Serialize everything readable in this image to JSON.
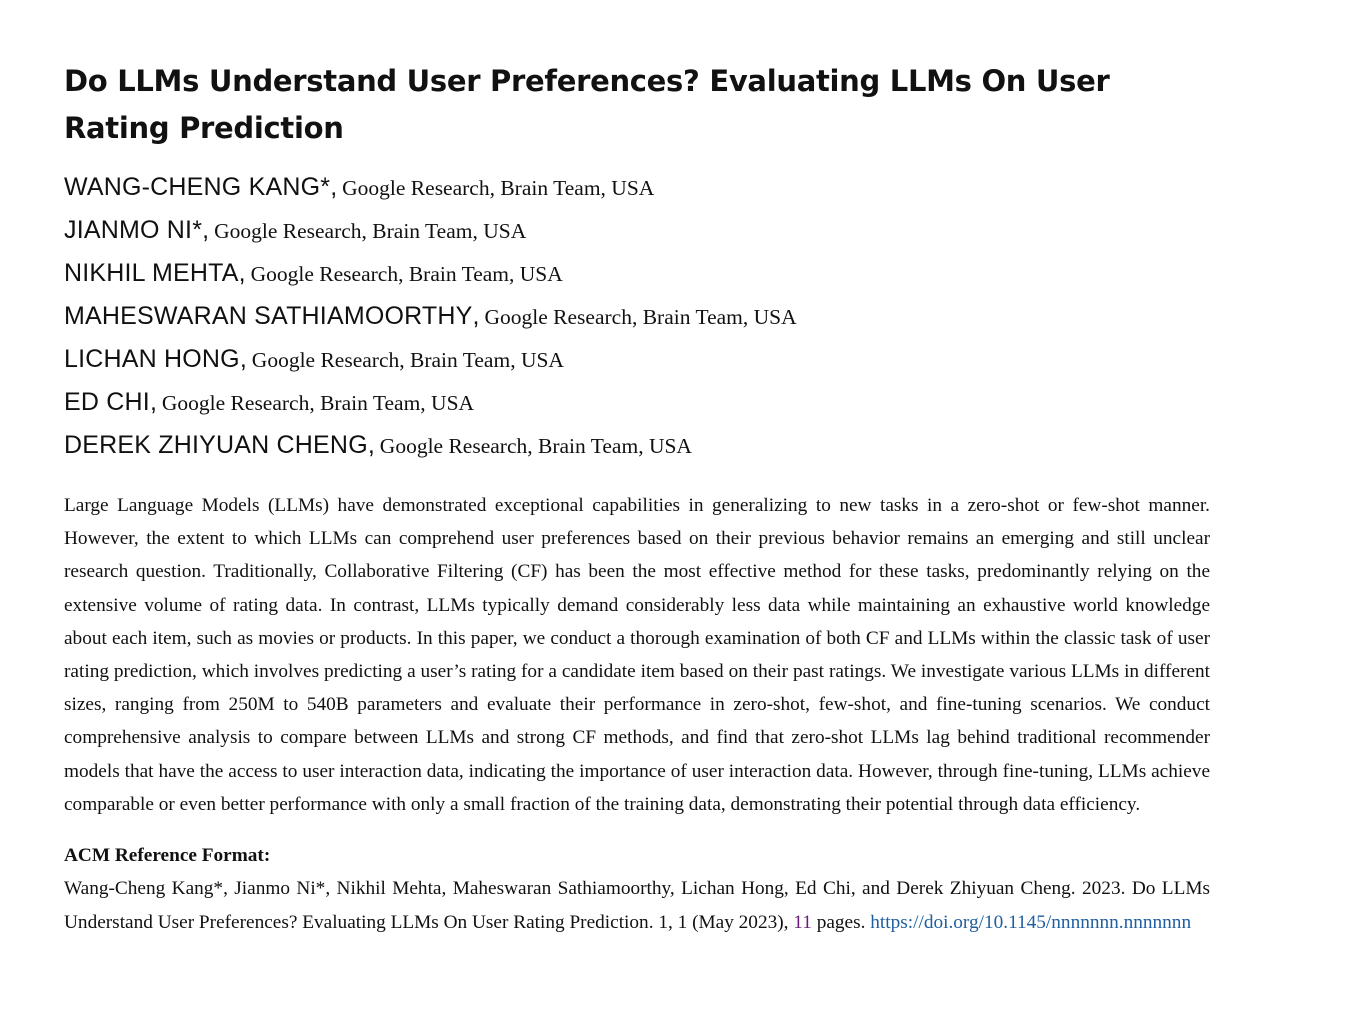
{
  "paper": {
    "title": "Do LLMs Understand User Preferences? Evaluating LLMs On User Rating Prediction",
    "authors": [
      {
        "name": "WANG-CHENG KANG*",
        "affiliation": "Google Research, Brain Team, USA"
      },
      {
        "name": "JIANMO NI*",
        "affiliation": "Google Research, Brain Team, USA"
      },
      {
        "name": "NIKHIL MEHTA",
        "affiliation": "Google Research, Brain Team, USA"
      },
      {
        "name": "MAHESWARAN SATHIAMOORTHY",
        "affiliation": "Google Research, Brain Team, USA"
      },
      {
        "name": "LICHAN HONG",
        "affiliation": "Google Research, Brain Team, USA"
      },
      {
        "name": "ED CHI",
        "affiliation": "Google Research, Brain Team, USA"
      },
      {
        "name": "DEREK ZHIYUAN CHENG",
        "affiliation": "Google Research, Brain Team, USA"
      }
    ],
    "abstract": "Large Language Models (LLMs) have demonstrated exceptional capabilities in generalizing to new tasks in a zero-shot or few-shot manner. However, the extent to which LLMs can comprehend user preferences based on their previous behavior remains an emerging and still unclear research question. Traditionally, Collaborative Filtering (CF) has been the most effective method for these tasks, predominantly relying on the extensive volume of rating data. In contrast, LLMs typically demand considerably less data while maintaining an exhaustive world knowledge about each item, such as movies or products. In this paper, we conduct a thorough examination of both CF and LLMs within the classic task of user rating prediction, which involves predicting a user’s rating for a candidate item based on their past ratings. We investigate various LLMs in different sizes, ranging from 250M to 540B parameters and evaluate their performance in zero-shot, few-shot, and fine-tuning scenarios. We conduct comprehensive analysis to compare between LLMs and strong CF methods, and find that zero-shot LLMs lag behind traditional recommender models that have the access to user interaction data, indicating the importance of user interaction data. However, through fine-tuning, LLMs achieve comparable or even better performance with only a small fraction of the training data, demonstrating their potential through data efficiency.",
    "reference": {
      "heading": "ACM Reference Format:",
      "text_before": "Wang-Cheng Kang*, Jianmo Ni*, Nikhil Mehta, Maheswaran Sathiamoorthy, Lichan Hong, Ed Chi, and Derek Zhiyuan Cheng. 2023. Do LLMs Understand User Preferences? Evaluating LLMs On User Rating Prediction.  1, 1 (May 2023), ",
      "pages_number": "11",
      "pages_word": " pages. ",
      "doi_link": "https://doi.org/10.1145/nnnnnnn.nnnnnnn"
    },
    "colors": {
      "pages_number": "#6a1b7a",
      "doi_link": "#1f5fa0",
      "text": "#111111"
    }
  }
}
